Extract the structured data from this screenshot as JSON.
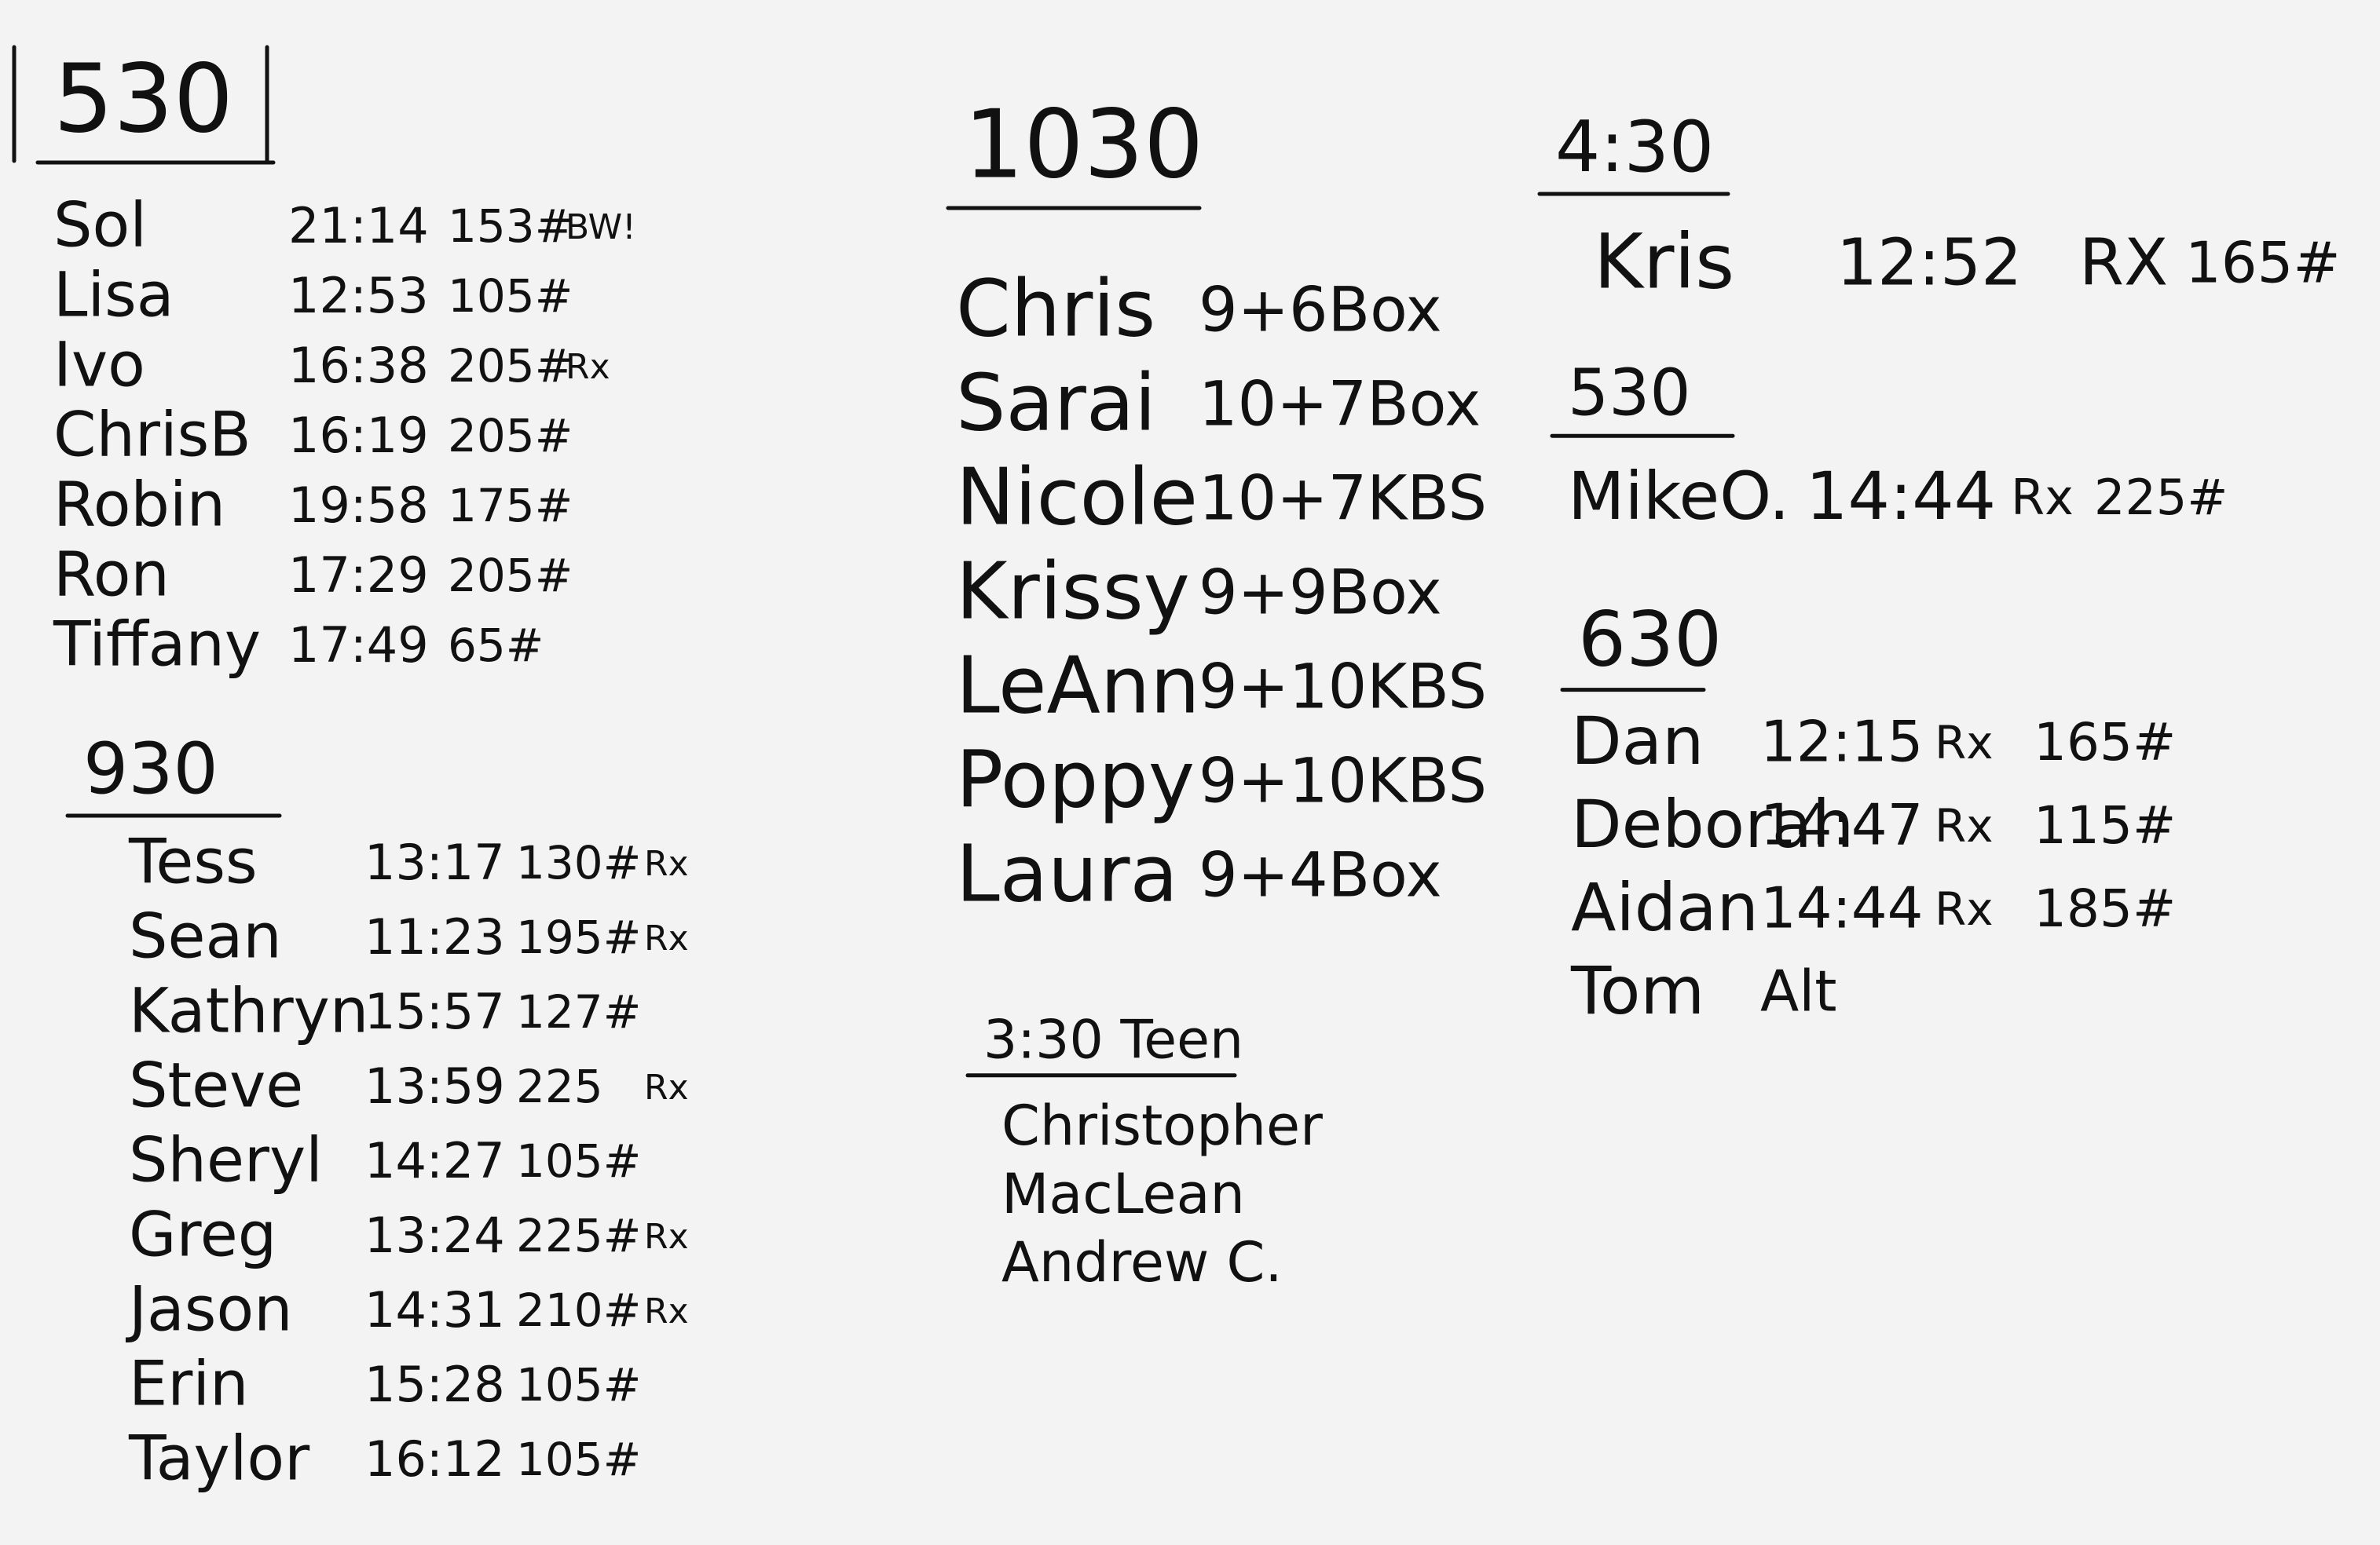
{
  "groups": [
    {
      "heading": "530",
      "rows": [
        [
          "Sol",
          "21:14",
          "153#",
          "BW!"
        ],
        [
          "Lisa",
          "12:53",
          "105#"
        ],
        [
          "Ivo",
          "16:38",
          "205#",
          "Rx"
        ],
        [
          "ChrisB",
          "16:19",
          "205#"
        ],
        [
          "Robin",
          "19:58",
          "175#"
        ],
        [
          "Ron",
          "17:29",
          "205#"
        ],
        [
          "Tiffany",
          "17:49",
          "65#"
        ]
      ]
    },
    {
      "heading": "930",
      "rows": [
        [
          "Tess",
          "13:17",
          "130#",
          "Rx"
        ],
        [
          "Sean",
          "11:23",
          "195#",
          "Rx"
        ],
        [
          "Kathryn",
          "15:57",
          "127#"
        ],
        [
          "Steve",
          "13:59",
          "225",
          "Rx"
        ],
        [
          "Sheryl",
          "14:27",
          "105#"
        ],
        [
          "Greg",
          "13:24",
          "225#",
          "Rx"
        ],
        [
          "Jason",
          "14:31",
          "210#",
          "Rx"
        ],
        [
          "Erin",
          "15:28",
          "105#"
        ],
        [
          "Taylor",
          "16:12",
          "105#"
        ]
      ]
    },
    {
      "heading": "1030",
      "rows": [
        [
          "Chris",
          "9+6Box"
        ],
        [
          "Sarai",
          "10+7Box"
        ],
        [
          "Nicole",
          "10+7KBS"
        ],
        [
          "Krissy",
          "9+9Box"
        ],
        [
          "LeAnn",
          "9+10KBS"
        ],
        [
          "Poppy",
          "9+10KBS"
        ],
        [
          "Laura",
          "9+4Box"
        ]
      ]
    },
    {
      "heading": "3:30 Teen",
      "rows": [
        [
          "Christopher"
        ],
        [
          "MacLean"
        ],
        [
          "Andrew C."
        ]
      ]
    },
    {
      "heading": "4:30",
      "rows": [
        [
          "Kris",
          "12:52",
          "RX",
          "165#"
        ]
      ]
    },
    {
      "heading": "530",
      "rows": [
        [
          "MikeO.",
          "14:44",
          "Rx",
          "225#"
        ]
      ]
    },
    {
      "heading": "630",
      "rows": [
        [
          "Dan",
          "12:15",
          "Rx",
          "165#"
        ],
        [
          "Deborah",
          "14:47",
          "Rx",
          "115#"
        ],
        [
          "Aidan",
          "14:44",
          "Rx",
          "185#"
        ],
        [
          "Tom",
          "Alt"
        ]
      ]
    }
  ]
}
